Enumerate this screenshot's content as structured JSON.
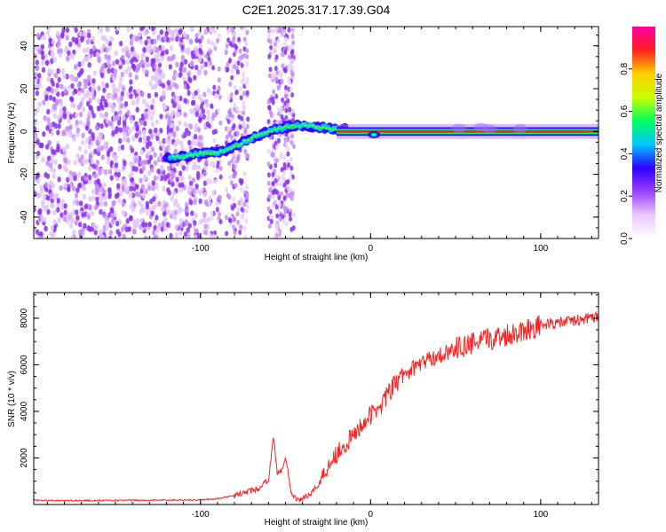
{
  "figure": {
    "title": "C2E1.2025.317.17.39.G04"
  },
  "chart_data": [
    {
      "type": "heatmap",
      "title": "C2E1.2025.317.17.39.G04",
      "xlabel": "Height of straight line (km)",
      "ylabel": "Frequency (Hz)",
      "xlim": [
        -198,
        134
      ],
      "ylim": [
        -50,
        49
      ],
      "xticks": [
        -100,
        0,
        100
      ],
      "yticks": [
        -40,
        -20,
        0,
        20,
        40
      ],
      "xtick_labels": [
        "-100",
        "0",
        "100"
      ],
      "ytick_labels": [
        "-40",
        "-20",
        "0",
        "20",
        "40"
      ],
      "colorbar": {
        "label": "Normalized spectral amplitude",
        "range": [
          0,
          1
        ],
        "ticks": [
          0.0,
          0.2,
          0.4,
          0.6,
          0.8
        ],
        "tick_labels": [
          "0.0",
          "0.2",
          "0.4",
          "0.6",
          "0.8"
        ],
        "colors": [
          "#ffffff",
          "#e8c8ff",
          "#9a40ff",
          "#3000ff",
          "#00c8ff",
          "#00ff60",
          "#c8ff00",
          "#ffd000",
          "#ff2020",
          "#ff00a0"
        ]
      },
      "ridge": {
        "description_points_x": [
          -120,
          -110,
          -100,
          -90,
          -80,
          -70,
          -60,
          -50,
          -40,
          -30,
          -20,
          -10,
          0,
          10,
          50,
          60,
          70,
          80,
          90,
          100,
          134
        ],
        "description_points_y": [
          -12,
          -12,
          -10,
          -10,
          -7,
          -3,
          0,
          2,
          3,
          2,
          1,
          1,
          0,
          0,
          1,
          1,
          0.5,
          0.5,
          0,
          0,
          0
        ]
      }
    },
    {
      "type": "line",
      "xlabel": "Height of straight line (km)",
      "ylabel": "SNR (10 * v/v)",
      "xlim": [
        -198,
        134
      ],
      "ylim": [
        0,
        9100
      ],
      "xticks": [
        -100,
        0,
        100
      ],
      "yticks": [
        2000,
        4000,
        6000,
        8000
      ],
      "xtick_labels": [
        "-100",
        "0",
        "100"
      ],
      "ytick_labels": [
        "2000",
        "4000",
        "6000",
        "8000"
      ],
      "color": "#ff2020",
      "series": [
        {
          "name": "SNR",
          "x": [
            -198,
            -180,
            -160,
            -140,
            -120,
            -100,
            -90,
            -80,
            -70,
            -65,
            -60,
            -57,
            -55,
            -52,
            -50,
            -47,
            -45,
            -42,
            -40,
            -35,
            -30,
            -25,
            -20,
            -15,
            -10,
            -5,
            0,
            5,
            10,
            15,
            20,
            30,
            40,
            50,
            60,
            70,
            80,
            90,
            100,
            110,
            120,
            134
          ],
          "y": [
            180,
            170,
            170,
            180,
            190,
            200,
            250,
            380,
            600,
            700,
            1100,
            2900,
            1400,
            1500,
            2100,
            600,
            300,
            220,
            250,
            500,
            900,
            1700,
            2200,
            2600,
            2900,
            3500,
            3800,
            4200,
            4700,
            5200,
            5600,
            6100,
            6400,
            6700,
            6900,
            7100,
            7300,
            7500,
            7700,
            7800,
            7900,
            8050
          ]
        }
      ]
    }
  ]
}
